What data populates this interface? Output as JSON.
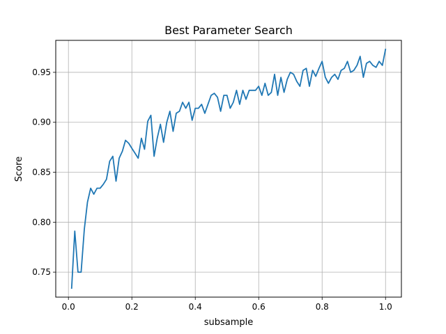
{
  "chart_data": {
    "type": "line",
    "title": "Best Parameter Search",
    "xlabel": "subsample",
    "ylabel": "Score",
    "xlim": [
      -0.04,
      1.05
    ],
    "ylim": [
      0.725,
      0.982
    ],
    "grid": true,
    "line_color": "#1f77b4",
    "xticks": [
      0.0,
      0.2,
      0.4,
      0.6,
      0.8,
      1.0
    ],
    "xtick_labels": [
      "0.0",
      "0.2",
      "0.4",
      "0.6",
      "0.8",
      "1.0"
    ],
    "yticks": [
      0.75,
      0.8,
      0.85,
      0.9,
      0.95
    ],
    "ytick_labels": [
      "0.75",
      "0.80",
      "0.85",
      "0.90",
      "0.95"
    ],
    "x": [
      0.01,
      0.02,
      0.03,
      0.04,
      0.05,
      0.06,
      0.07,
      0.08,
      0.09,
      0.1,
      0.11,
      0.12,
      0.13,
      0.14,
      0.15,
      0.16,
      0.17,
      0.18,
      0.19,
      0.2,
      0.21,
      0.22,
      0.23,
      0.24,
      0.25,
      0.26,
      0.27,
      0.28,
      0.29,
      0.3,
      0.31,
      0.32,
      0.33,
      0.34,
      0.35,
      0.36,
      0.37,
      0.38,
      0.39,
      0.4,
      0.41,
      0.42,
      0.43,
      0.44,
      0.45,
      0.46,
      0.47,
      0.48,
      0.49,
      0.5,
      0.51,
      0.52,
      0.53,
      0.54,
      0.55,
      0.56,
      0.57,
      0.58,
      0.59,
      0.6,
      0.61,
      0.62,
      0.63,
      0.64,
      0.65,
      0.66,
      0.67,
      0.68,
      0.69,
      0.7,
      0.71,
      0.72,
      0.73,
      0.74,
      0.75,
      0.76,
      0.77,
      0.78,
      0.79,
      0.8,
      0.81,
      0.82,
      0.83,
      0.84,
      0.85,
      0.86,
      0.87,
      0.88,
      0.89,
      0.9,
      0.91,
      0.92,
      0.93,
      0.94,
      0.95,
      0.96,
      0.97,
      0.98,
      0.99,
      1.0
    ],
    "y": [
      0.734,
      0.791,
      0.75,
      0.75,
      0.793,
      0.82,
      0.834,
      0.828,
      0.834,
      0.834,
      0.838,
      0.843,
      0.861,
      0.866,
      0.841,
      0.864,
      0.871,
      0.882,
      0.879,
      0.874,
      0.869,
      0.864,
      0.884,
      0.873,
      0.901,
      0.907,
      0.866,
      0.884,
      0.898,
      0.88,
      0.9,
      0.911,
      0.891,
      0.909,
      0.911,
      0.92,
      0.914,
      0.92,
      0.902,
      0.914,
      0.914,
      0.918,
      0.909,
      0.918,
      0.927,
      0.929,
      0.925,
      0.911,
      0.927,
      0.927,
      0.914,
      0.92,
      0.932,
      0.918,
      0.932,
      0.923,
      0.932,
      0.932,
      0.932,
      0.936,
      0.927,
      0.939,
      0.927,
      0.93,
      0.948,
      0.927,
      0.945,
      0.93,
      0.943,
      0.95,
      0.948,
      0.941,
      0.936,
      0.952,
      0.954,
      0.936,
      0.952,
      0.946,
      0.954,
      0.961,
      0.945,
      0.939,
      0.945,
      0.948,
      0.943,
      0.952,
      0.954,
      0.961,
      0.95,
      0.952,
      0.957,
      0.966,
      0.945,
      0.959,
      0.961,
      0.957,
      0.955,
      0.961,
      0.957,
      0.973
    ]
  }
}
